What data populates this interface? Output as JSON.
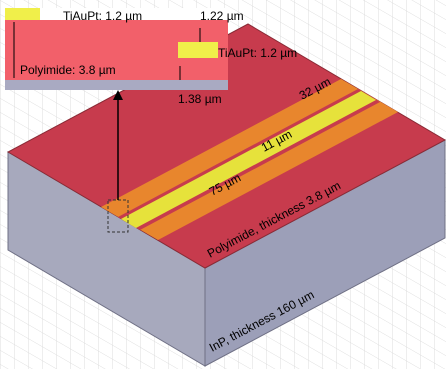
{
  "inset": {
    "labels": [
      "TiAuPt: 1.2 µm",
      "Polyimide: 3.8 µm",
      "TiAuPt: 1.2 µm"
    ],
    "dimensions": [
      "1.22 µm",
      "1.38 µm"
    ]
  },
  "dimensions": [
    "32 µm",
    "11 µm",
    "75 µm"
  ],
  "layers": [
    "Polyimide, thickness 3.8 µm",
    "InP, thickness 160 µm"
  ]
}
